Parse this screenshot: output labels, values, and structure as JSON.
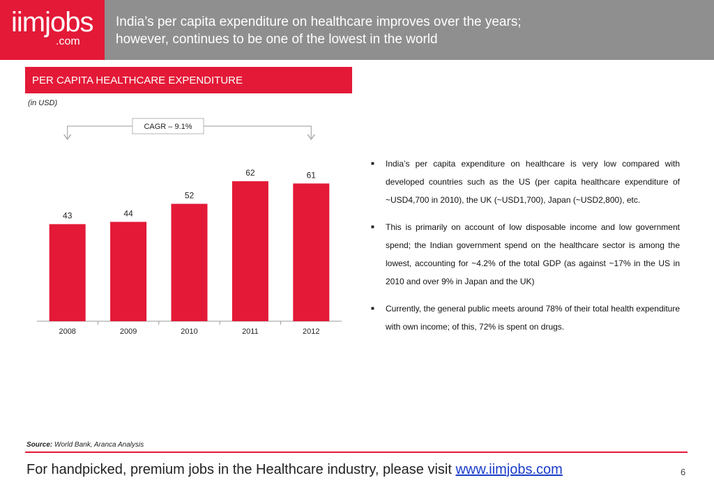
{
  "brand": {
    "logo_main": "iimjobs",
    "logo_sub": ".com",
    "accent": "#e31937",
    "header_bg": "#8f8f8f"
  },
  "header": {
    "title_line1": "India’s per capita expenditure on healthcare improves over the years;",
    "title_line2": "however, continues to be one of the lowest in the world"
  },
  "section": {
    "title": "PER CAPITA HEALTHCARE EXPENDITURE",
    "unit": "(in USD)"
  },
  "chart_data": {
    "type": "bar",
    "categories": [
      "2008",
      "2009",
      "2010",
      "2011",
      "2012"
    ],
    "values": [
      43,
      44,
      52,
      62,
      61
    ],
    "bar_color": "#e31937",
    "title": "",
    "xlabel": "",
    "ylabel": "",
    "annotation": "CAGR – 9.1%",
    "ylim": [
      0,
      70
    ],
    "grid": false
  },
  "bullets": [
    "India’s per capita expenditure on healthcare is very low compared with developed countries such as the US (per capita healthcare expenditure of ~USD4,700 in 2010), the UK (~USD1,700), Japan (~USD2,800), etc.",
    "This is primarily on account of low disposable income and low government spend; the Indian government spend on the healthcare sector is among the lowest, accounting for ~4.2% of the total GDP (as against ~17% in the US in 2010 and over 9% in Japan and the UK)",
    "Currently, the general public meets around 78% of their total health expenditure with own income; of this, 72% is spent on drugs."
  ],
  "source": {
    "label": "Source:",
    "text": " World Bank, Aranca Analysis"
  },
  "footer": {
    "text": "For handpicked, premium jobs in the Healthcare industry, please visit ",
    "link": "www.iimjobs.com",
    "page": "6"
  }
}
